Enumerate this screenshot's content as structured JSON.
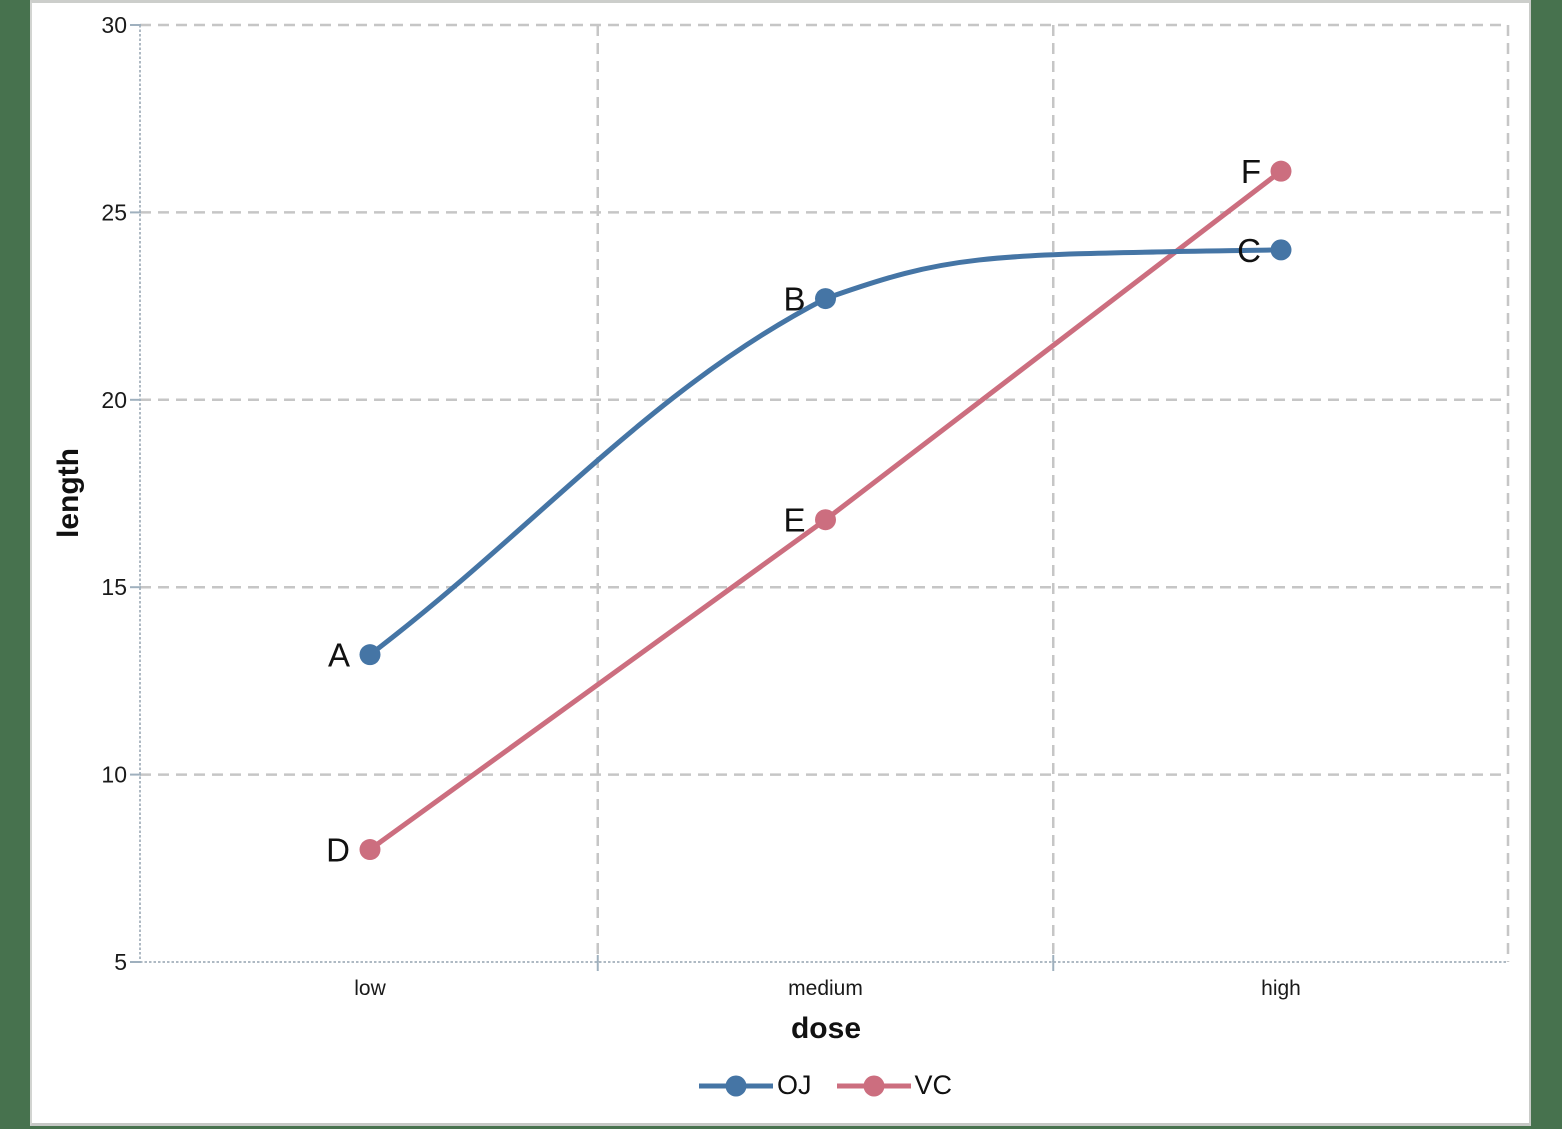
{
  "page": {
    "frame_color": "#47724E",
    "background_color": "#FFFFFF",
    "border_color": "#CBCDCA"
  },
  "chart_data": {
    "type": "line",
    "categories": [
      "low",
      "medium",
      "high"
    ],
    "series": [
      {
        "name": "OJ",
        "color": "#4575A5",
        "values": [
          13.2,
          22.7,
          24.0
        ],
        "point_labels": [
          "A",
          "B",
          "C"
        ],
        "smooth": true
      },
      {
        "name": "VC",
        "color": "#CC6E7F",
        "values": [
          8.0,
          16.8,
          26.1
        ],
        "point_labels": [
          "D",
          "E",
          "F"
        ],
        "smooth": false
      }
    ],
    "xlabel": "dose",
    "ylabel": "length",
    "ylim": [
      5,
      30
    ],
    "y_ticks": [
      30,
      25,
      20,
      15,
      10,
      5
    ],
    "grid": "dashed",
    "legend_position": "bottom",
    "grid_color": "#C6C6C6",
    "axis_color": "#AEB9C3",
    "text_color": "#1A1A1A"
  }
}
